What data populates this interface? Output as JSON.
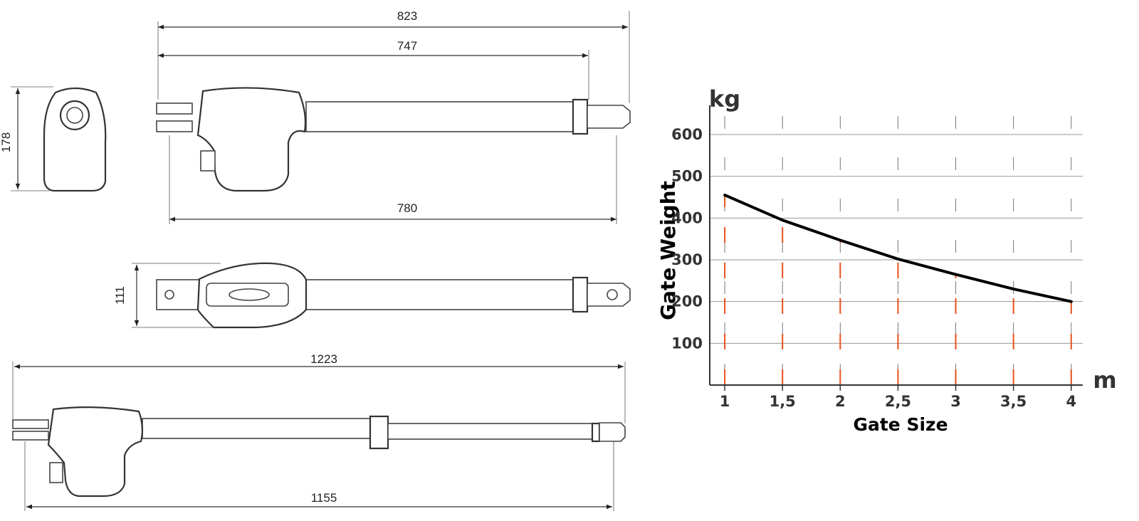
{
  "drawing": {
    "dimension_labels": [
      823,
      747,
      780,
      178,
      111,
      1223,
      1155
    ]
  },
  "chart_data": {
    "type": "line",
    "y_unit": "kg",
    "x_unit": "m",
    "ylabel": "Gate Weight",
    "xlabel": "Gate Size",
    "x": [
      1,
      1.5,
      2,
      2.5,
      3,
      3.5,
      4
    ],
    "values": [
      455,
      395,
      347,
      302,
      265,
      230,
      200
    ],
    "color": "#000000",
    "drop_line_color": "#e8501c",
    "grid": true,
    "xlim": [
      0.87,
      4.1
    ],
    "ylim": [
      0,
      670
    ],
    "xticks": [
      1,
      {
        "value": 1.5,
        "label": "1,5"
      },
      2,
      {
        "value": 2.5,
        "label": "2,5"
      },
      3,
      {
        "value": 3.5,
        "label": "3,5"
      },
      4
    ],
    "yticks": [
      100,
      200,
      300,
      400,
      500,
      600
    ]
  }
}
